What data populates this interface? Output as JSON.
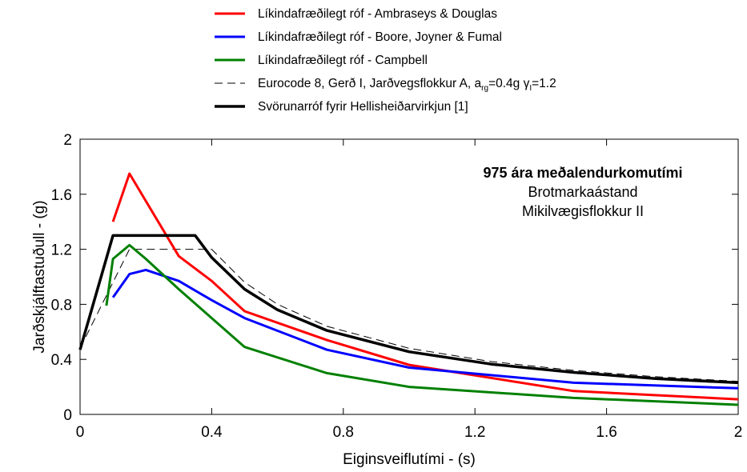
{
  "chart_data": {
    "type": "line",
    "xlabel": "Eiginsveiflutími - (s)",
    "ylabel": "Jarðskjálftastuðull - (g)",
    "xlim": [
      0,
      2
    ],
    "ylim": [
      0,
      2
    ],
    "xticks": [
      "0",
      "0.4",
      "0.8",
      "1.2",
      "1.6",
      "2"
    ],
    "yticks": [
      "0",
      "0.4",
      "0.8",
      "1.2",
      "1.6",
      "2"
    ],
    "grid": false,
    "legend_position": "top",
    "annotations": [
      "975 ára meðalendurkomutími",
      "Brotmarkaástand",
      "Mikilvægisflokkur II"
    ],
    "series": [
      {
        "name": "Líkindafræðilegt róf - Ambraseys & Douglas",
        "color": "#ff0000",
        "style": "solid",
        "x": [
          0.1,
          0.15,
          0.3,
          0.4,
          0.5,
          0.75,
          1.0,
          1.5,
          2.0
        ],
        "y": [
          1.4,
          1.75,
          1.15,
          0.97,
          0.75,
          0.54,
          0.36,
          0.17,
          0.11
        ]
      },
      {
        "name": "Líkindafræðilegt róf - Boore, Joyner & Fumal",
        "color": "#0000ff",
        "style": "solid",
        "x": [
          0.1,
          0.15,
          0.2,
          0.3,
          0.4,
          0.5,
          0.75,
          1.0,
          1.5,
          2.0
        ],
        "y": [
          0.85,
          1.02,
          1.05,
          0.97,
          0.83,
          0.7,
          0.47,
          0.34,
          0.23,
          0.19
        ]
      },
      {
        "name": "Líkindafræðilegt róf - Campbell",
        "color": "#008000",
        "style": "solid",
        "x": [
          0.08,
          0.1,
          0.15,
          0.2,
          0.3,
          0.5,
          0.75,
          1.0,
          1.5,
          2.0
        ],
        "y": [
          0.79,
          1.13,
          1.23,
          1.13,
          0.91,
          0.49,
          0.3,
          0.2,
          0.12,
          0.07
        ]
      },
      {
        "name_parts": {
          "pre": "Eurocode 8, Gerð I, Jarðvegsflokkur A, a",
          "sub1": "rg",
          "mid": "=0.4g  γ",
          "sub2": "I",
          "post": "=1.2"
        },
        "color": "#000000",
        "style": "dashed",
        "x": [
          0,
          0.15,
          0.4,
          0.5,
          0.6,
          0.75,
          1.0,
          1.25,
          1.5,
          1.75,
          2.0
        ],
        "y": [
          0.48,
          1.2,
          1.2,
          0.96,
          0.8,
          0.64,
          0.48,
          0.384,
          0.32,
          0.274,
          0.24
        ]
      },
      {
        "name": "Svörunarróf fyrir Hellisheiðarvirkjun [1]",
        "color": "#000000",
        "style": "thick",
        "x": [
          0,
          0.1,
          0.35,
          0.4,
          0.5,
          0.6,
          0.75,
          1.0,
          1.25,
          1.5,
          1.75,
          2.0
        ],
        "y": [
          0.47,
          1.3,
          1.3,
          1.14,
          0.91,
          0.76,
          0.61,
          0.455,
          0.365,
          0.305,
          0.26,
          0.23
        ]
      }
    ]
  }
}
